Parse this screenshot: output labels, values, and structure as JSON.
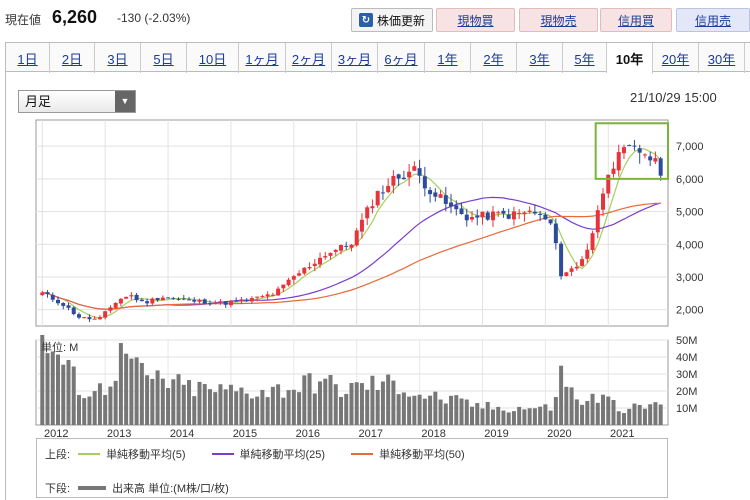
{
  "header": {
    "price_label": "現在値",
    "price_value": "6,260",
    "price_change": "-130 (-2.03%)",
    "refresh_icon": "refresh-icon",
    "refresh_label": "株価更新",
    "buttons": [
      {
        "label": "現物買",
        "color": "#f7e3e3"
      },
      {
        "label": "現物売",
        "color": "#f7e3e3"
      },
      {
        "label": "信用買",
        "color": "#f7e3e3"
      },
      {
        "label": "信用売",
        "color": "#e3e7f7"
      }
    ]
  },
  "tabs": [
    {
      "label": "1日"
    },
    {
      "label": "2日"
    },
    {
      "label": "3日"
    },
    {
      "label": "5日"
    },
    {
      "label": "10日"
    },
    {
      "label": "1ヶ月"
    },
    {
      "label": "2ヶ月"
    },
    {
      "label": "3ヶ月"
    },
    {
      "label": "6ヶ月"
    },
    {
      "label": "1年"
    },
    {
      "label": "2年"
    },
    {
      "label": "3年"
    },
    {
      "label": "5年"
    },
    {
      "label": "10年",
      "active": true
    },
    {
      "label": "20年"
    },
    {
      "label": "30年"
    }
  ],
  "chart_controls": {
    "interval_selected": "月足",
    "timestamp": "21/10/29 15:00"
  },
  "chart_data": [
    {
      "type": "candlestick",
      "y_ticks": [
        "7,000",
        "6,000",
        "5,000",
        "4,000",
        "3,000",
        "2,000"
      ],
      "ylim": [
        1500,
        7800
      ],
      "x_ticks": [
        "2012",
        "2013",
        "2014",
        "2015",
        "2016",
        "2017",
        "2018",
        "2019",
        "2020",
        "2021"
      ],
      "x_range": [
        2011.9,
        2021.95
      ],
      "colors": {
        "up": "#e8333a",
        "down": "#2d4b9c"
      },
      "highlight_box": {
        "x_from": 2020.8,
        "x_to": 2021.95,
        "y_from": 6000,
        "y_to": 7700,
        "color": "#7bb33a"
      },
      "close_key": [
        [
          2012.0,
          2500
        ],
        [
          2012.3,
          2200
        ],
        [
          2012.6,
          1750
        ],
        [
          2012.9,
          1700
        ],
        [
          2013.2,
          2300
        ],
        [
          2013.4,
          2450
        ],
        [
          2013.6,
          2200
        ],
        [
          2013.9,
          2400
        ],
        [
          2014.2,
          2300
        ],
        [
          2014.5,
          2250
        ],
        [
          2014.9,
          2200
        ],
        [
          2015.3,
          2300
        ],
        [
          2015.7,
          2500
        ],
        [
          2016.0,
          3000
        ],
        [
          2016.5,
          3700
        ],
        [
          2016.9,
          4000
        ],
        [
          2017.3,
          5500
        ],
        [
          2017.6,
          6000
        ],
        [
          2017.9,
          6300
        ],
        [
          2018.2,
          5600
        ],
        [
          2018.5,
          5100
        ],
        [
          2018.8,
          4800
        ],
        [
          2019.2,
          4900
        ],
        [
          2019.5,
          4900
        ],
        [
          2019.8,
          5000
        ],
        [
          2020.1,
          4600
        ],
        [
          2020.25,
          3100
        ],
        [
          2020.5,
          3300
        ],
        [
          2020.7,
          4000
        ],
        [
          2020.85,
          5100
        ],
        [
          2021.0,
          6300
        ],
        [
          2021.3,
          6900
        ],
        [
          2021.6,
          6800
        ],
        [
          2021.83,
          6260
        ]
      ],
      "overlays": [
        {
          "name": "単純移動平均(5)",
          "color": "#a6cf5a",
          "window": 5
        },
        {
          "name": "単純移動平均(25)",
          "color": "#7a3ecc",
          "window": 25
        },
        {
          "name": "単純移動平均(50)",
          "color": "#e8693a",
          "window": 50
        }
      ]
    },
    {
      "type": "bar",
      "panel_label": "単位: M",
      "y_ticks": [
        "50M",
        "40M",
        "30M",
        "20M",
        "10M"
      ],
      "ylim": [
        0,
        50
      ],
      "x_ticks": [
        "2012",
        "2013",
        "2014",
        "2015",
        "2016",
        "2017",
        "2018",
        "2019",
        "2020",
        "2021"
      ],
      "color": "#777777",
      "volume_key": [
        [
          2012.0,
          45
        ],
        [
          2012.1,
          48
        ],
        [
          2012.4,
          32
        ],
        [
          2012.7,
          18
        ],
        [
          2013.0,
          22
        ],
        [
          2013.3,
          43
        ],
        [
          2013.6,
          28
        ],
        [
          2013.9,
          26
        ],
        [
          2014.3,
          22
        ],
        [
          2014.8,
          20
        ],
        [
          2015.2,
          20
        ],
        [
          2015.6,
          20
        ],
        [
          2016.0,
          22
        ],
        [
          2016.4,
          26
        ],
        [
          2016.8,
          20
        ],
        [
          2017.2,
          24
        ],
        [
          2017.6,
          24
        ],
        [
          2018.0,
          18
        ],
        [
          2018.4,
          15
        ],
        [
          2018.8,
          12
        ],
        [
          2019.2,
          10
        ],
        [
          2019.6,
          10
        ],
        [
          2020.1,
          10
        ],
        [
          2020.25,
          30
        ],
        [
          2020.5,
          14
        ],
        [
          2020.9,
          16
        ],
        [
          2021.2,
          10
        ],
        [
          2021.6,
          10
        ],
        [
          2021.83,
          14
        ]
      ]
    }
  ],
  "legend": {
    "upper_label": "上段:",
    "lower_label": "下段:",
    "items": [
      {
        "name": "単純移動平均(5)",
        "color": "#a6cf5a"
      },
      {
        "name": "単純移動平均(25)",
        "color": "#7a3ecc"
      },
      {
        "name": "単純移動平均(50)",
        "color": "#e8693a"
      }
    ],
    "volume_name": "出来高 単位:(M株/口/枚)",
    "volume_color": "#777777"
  }
}
